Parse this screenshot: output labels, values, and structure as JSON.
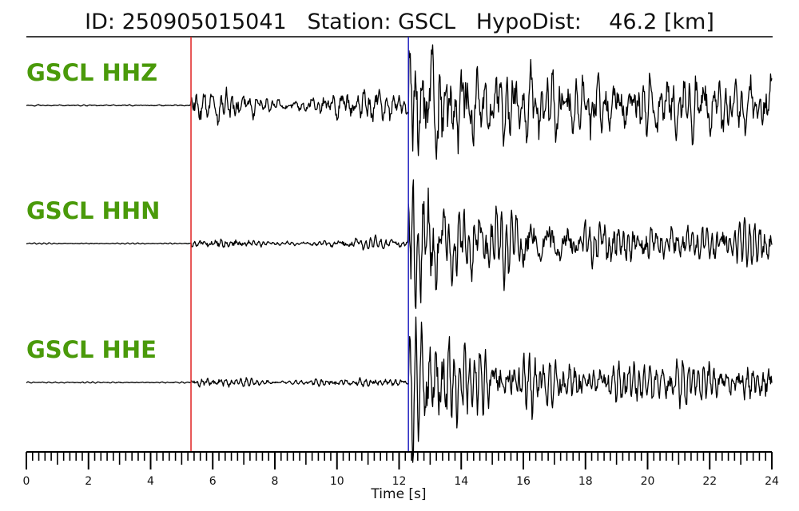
{
  "chart_data": {
    "type": "line",
    "title": "ID: 250905015041   Station: GSCL   HypoDist:    46.2 [km]",
    "xlabel": "Time [s]",
    "xlim": [
      0,
      24
    ],
    "x_ticks": [
      "0",
      "2",
      "4",
      "6",
      "8",
      "10",
      "12",
      "14",
      "16",
      "18",
      "20",
      "22",
      "24"
    ],
    "grid": false,
    "colors": {
      "trace": "#000000",
      "label": "#4a9a0a",
      "p_pick": "#e02020",
      "s_pick": "#2020c0"
    },
    "picks": [
      {
        "phase": "P",
        "time": 5.3
      },
      {
        "phase": "S",
        "time": 12.3
      }
    ],
    "series": [
      {
        "name": "GSCL HHZ",
        "pre_noise": 0.01,
        "p_amp": 0.22,
        "s_amp": 1.0,
        "coda_amp": 0.45
      },
      {
        "name": "GSCL HHN",
        "pre_noise": 0.01,
        "p_amp": 0.08,
        "s_amp": 0.95,
        "coda_amp": 0.32
      },
      {
        "name": "GSCL HHE",
        "pre_noise": 0.01,
        "p_amp": 0.07,
        "s_amp": 1.0,
        "coda_amp": 0.3
      }
    ]
  }
}
